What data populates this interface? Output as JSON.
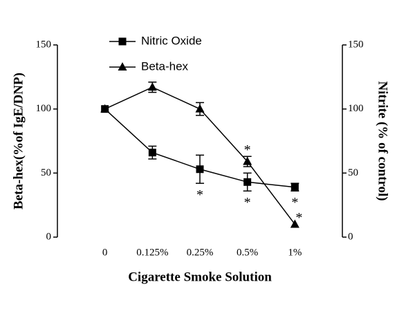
{
  "chart_data": {
    "type": "line",
    "x_label": "Cigarette Smoke Solution",
    "y_label": "Beta-hex(%of IgE/DNP)",
    "y2_label": "Nitrite (% of control)",
    "categories": [
      "0",
      "0.125%",
      "0.25%",
      "0.5%",
      "1%"
    ],
    "ylim": [
      0,
      150
    ],
    "yticks": [
      0,
      50,
      100,
      150
    ],
    "y2lim": [
      0,
      150
    ],
    "y2ticks": [
      0,
      50,
      100,
      150
    ],
    "legend": "upper left",
    "series": [
      {
        "name": "Nitric Oxide",
        "color": "#000000",
        "marker": "square",
        "axis": "y2",
        "values": [
          100,
          66,
          53,
          43,
          39
        ],
        "errors": [
          null,
          5,
          11,
          7,
          3
        ],
        "significance": [
          {
            "index": 2,
            "label": "*"
          },
          {
            "index": 3,
            "label": "*"
          },
          {
            "index": 4,
            "label": "*"
          }
        ],
        "significance_position": "below"
      },
      {
        "name": "Beta-hex",
        "color": "#000000",
        "marker": "triangle",
        "values": [
          100,
          117,
          100,
          59,
          10
        ],
        "errors": [
          null,
          4,
          5,
          4,
          null
        ],
        "significance": [
          {
            "index": 3,
            "label": "*"
          },
          {
            "index": 4,
            "label": "*"
          }
        ],
        "significance_position": "above"
      }
    ]
  }
}
